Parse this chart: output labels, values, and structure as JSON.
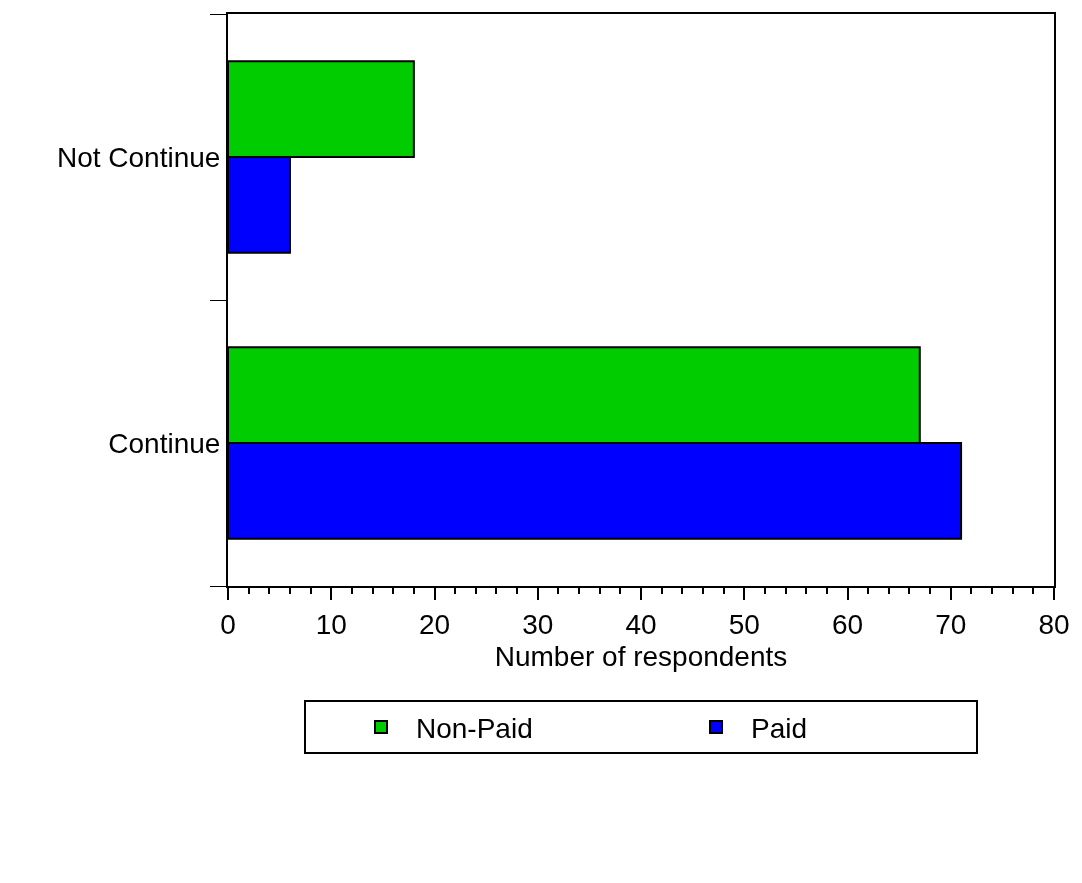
{
  "chart_data": {
    "type": "bar",
    "orientation": "horizontal",
    "xlabel": "Number of respondents",
    "categories": [
      "Not Continue",
      "Continue"
    ],
    "series": [
      {
        "name": "Non-Paid",
        "color": "#00cc00",
        "values": [
          18,
          67
        ]
      },
      {
        "name": "Paid",
        "color": "#0000ff",
        "values": [
          6,
          71
        ]
      }
    ],
    "xlim": [
      0,
      80
    ],
    "xticks": [
      0,
      {
        "value": 2,
        "label": null
      },
      {
        "value": 4,
        "label": null
      },
      {
        "value": 6,
        "label": null
      },
      {
        "value": 8,
        "label": null
      },
      10,
      {
        "value": 12,
        "label": null
      },
      {
        "value": 14,
        "label": null
      },
      {
        "value": 16,
        "label": null
      },
      {
        "value": 18,
        "label": null
      },
      20,
      {
        "value": 22,
        "label": null
      },
      {
        "value": 24,
        "label": null
      },
      {
        "value": 26,
        "label": null
      },
      {
        "value": 28,
        "label": null
      },
      30,
      {
        "value": 32,
        "label": null
      },
      {
        "value": 34,
        "label": null
      },
      {
        "value": 36,
        "label": null
      },
      {
        "value": 38,
        "label": null
      },
      40,
      {
        "value": 42,
        "label": null
      },
      {
        "value": 44,
        "label": null
      },
      {
        "value": 46,
        "label": null
      },
      {
        "value": 48,
        "label": null
      },
      50,
      {
        "value": 52,
        "label": null
      },
      {
        "value": 54,
        "label": null
      },
      {
        "value": 56,
        "label": null
      },
      {
        "value": 58,
        "label": null
      },
      60,
      {
        "value": 62,
        "label": null
      },
      {
        "value": 64,
        "label": null
      },
      {
        "value": 66,
        "label": null
      },
      {
        "value": 68,
        "label": null
      },
      70,
      {
        "value": 72,
        "label": null
      },
      {
        "value": 74,
        "label": null
      },
      {
        "value": 76,
        "label": null
      },
      {
        "value": 78,
        "label": null
      },
      80
    ],
    "legend": "bottom"
  }
}
